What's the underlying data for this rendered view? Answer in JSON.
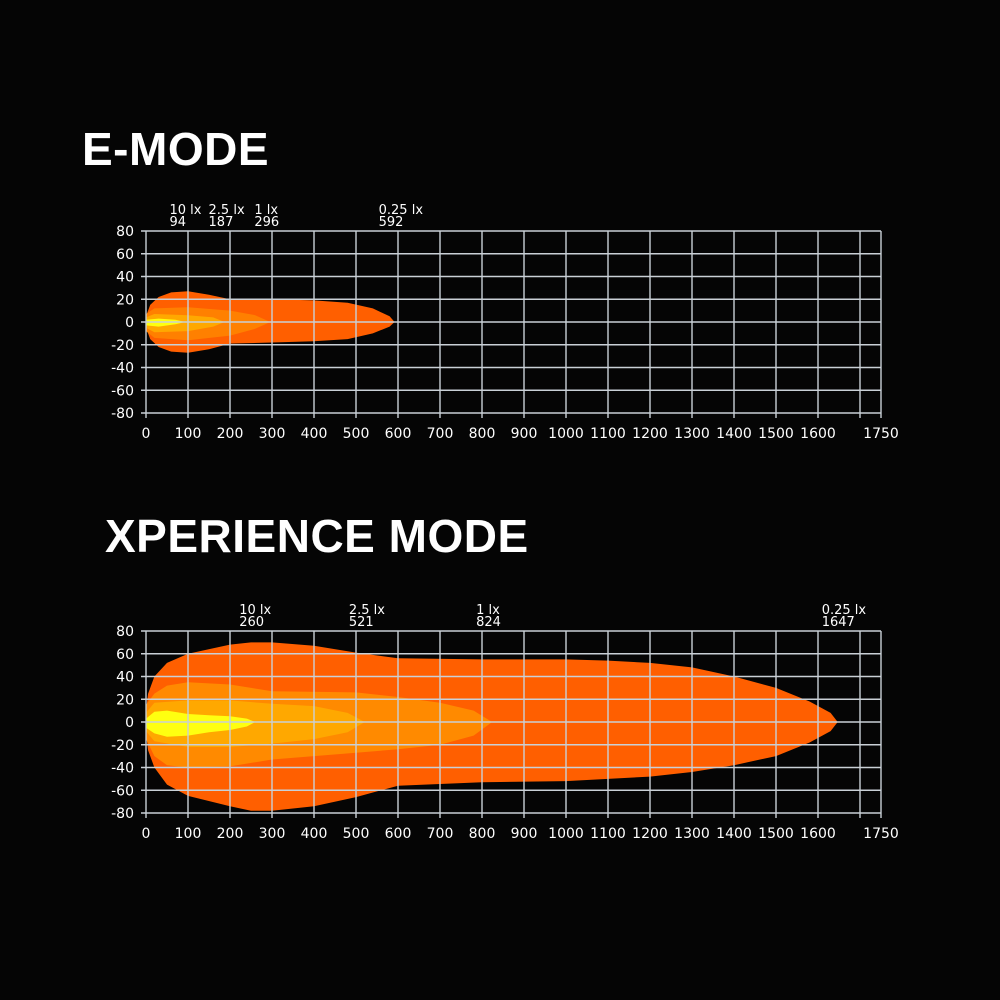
{
  "chart_data": [
    {
      "type": "area",
      "title": "E-MODE",
      "xlim": [
        0,
        1750
      ],
      "ylim": [
        -80,
        80
      ],
      "x_ticks": [
        0,
        100,
        200,
        300,
        400,
        500,
        600,
        700,
        800,
        900,
        1000,
        1100,
        1200,
        1300,
        1400,
        1500,
        1600,
        1750
      ],
      "x_grid": [
        0,
        100,
        200,
        300,
        400,
        500,
        600,
        700,
        800,
        900,
        1000,
        1100,
        1200,
        1300,
        1400,
        1500,
        1600,
        1700,
        1750
      ],
      "y_ticks": [
        80,
        60,
        40,
        20,
        0,
        -20,
        -40,
        -60,
        -80
      ],
      "grid": true,
      "contours": [
        {
          "label": "0.25 lx",
          "reach": 592,
          "color": "#ff5f00",
          "upper": [
            [
              0,
              5
            ],
            [
              10,
              15
            ],
            [
              30,
              22
            ],
            [
              60,
              26
            ],
            [
              100,
              27
            ],
            [
              150,
              24
            ],
            [
              200,
              20
            ],
            [
              300,
              20
            ],
            [
              400,
              19
            ],
            [
              480,
              17
            ],
            [
              540,
              12
            ],
            [
              580,
              5
            ],
            [
              592,
              0
            ]
          ],
          "lower": [
            [
              0,
              -5
            ],
            [
              10,
              -15
            ],
            [
              30,
              -22
            ],
            [
              60,
              -26
            ],
            [
              100,
              -27
            ],
            [
              150,
              -24
            ],
            [
              200,
              -19
            ],
            [
              300,
              -18
            ],
            [
              400,
              -17
            ],
            [
              480,
              -15
            ],
            [
              540,
              -10
            ],
            [
              580,
              -4
            ]
          ]
        },
        {
          "label": "1 lx",
          "reach": 296,
          "color": "#ff8000",
          "upper": [
            [
              0,
              7
            ],
            [
              20,
              12
            ],
            [
              100,
              13
            ],
            [
              200,
              10
            ],
            [
              260,
              6
            ],
            [
              296,
              0
            ]
          ],
          "lower": [
            [
              0,
              -8
            ],
            [
              20,
              -14
            ],
            [
              100,
              -16
            ],
            [
              200,
              -12
            ],
            [
              260,
              -6
            ]
          ]
        },
        {
          "label": "2.5 lx",
          "reach": 187,
          "color": "#ffa800",
          "upper": [
            [
              0,
              4
            ],
            [
              20,
              7
            ],
            [
              100,
              6
            ],
            [
              160,
              4
            ],
            [
              187,
              0
            ]
          ],
          "lower": [
            [
              0,
              -5
            ],
            [
              20,
              -9
            ],
            [
              100,
              -8
            ],
            [
              160,
              -4
            ]
          ]
        },
        {
          "label": "10 lx",
          "reach": 94,
          "color": "#ffff10",
          "upper": [
            [
              0,
              2
            ],
            [
              30,
              3
            ],
            [
              70,
              2
            ],
            [
              94,
              0
            ]
          ],
          "lower": [
            [
              0,
              -3
            ],
            [
              30,
              -4
            ],
            [
              70,
              -2
            ]
          ]
        }
      ]
    },
    {
      "type": "area",
      "title": "XPERIENCE MODE",
      "xlim": [
        0,
        1750
      ],
      "ylim": [
        -80,
        80
      ],
      "x_ticks": [
        0,
        100,
        200,
        300,
        400,
        500,
        600,
        700,
        800,
        900,
        1000,
        1100,
        1200,
        1300,
        1400,
        1500,
        1600,
        1750
      ],
      "x_grid": [
        0,
        100,
        200,
        300,
        400,
        500,
        600,
        700,
        800,
        900,
        1000,
        1100,
        1200,
        1300,
        1400,
        1500,
        1600,
        1700,
        1750
      ],
      "y_ticks": [
        80,
        60,
        40,
        20,
        0,
        -20,
        -40,
        -60,
        -80
      ],
      "grid": true,
      "contours": [
        {
          "label": "0.25 lx",
          "reach": 1647,
          "color": "#ff5f00",
          "upper": [
            [
              0,
              10
            ],
            [
              5,
              25
            ],
            [
              20,
              40
            ],
            [
              50,
              52
            ],
            [
              100,
              60
            ],
            [
              200,
              68
            ],
            [
              250,
              70
            ],
            [
              300,
              70
            ],
            [
              400,
              67
            ],
            [
              500,
              61
            ],
            [
              600,
              56
            ],
            [
              800,
              55
            ],
            [
              1000,
              55
            ],
            [
              1100,
              54
            ],
            [
              1200,
              52
            ],
            [
              1300,
              48
            ],
            [
              1400,
              40
            ],
            [
              1500,
              30
            ],
            [
              1580,
              18
            ],
            [
              1630,
              8
            ],
            [
              1647,
              0
            ]
          ],
          "lower": [
            [
              0,
              -10
            ],
            [
              5,
              -25
            ],
            [
              20,
              -40
            ],
            [
              50,
              -55
            ],
            [
              100,
              -65
            ],
            [
              200,
              -74
            ],
            [
              250,
              -78
            ],
            [
              300,
              -78
            ],
            [
              400,
              -74
            ],
            [
              500,
              -66
            ],
            [
              600,
              -56
            ],
            [
              800,
              -53
            ],
            [
              1000,
              -52
            ],
            [
              1200,
              -48
            ],
            [
              1300,
              -44
            ],
            [
              1400,
              -38
            ],
            [
              1500,
              -30
            ],
            [
              1580,
              -18
            ],
            [
              1630,
              -8
            ]
          ]
        },
        {
          "label": "1 lx",
          "reach": 824,
          "color": "#ff8a00",
          "upper": [
            [
              0,
              15
            ],
            [
              20,
              25
            ],
            [
              50,
              32
            ],
            [
              100,
              35
            ],
            [
              200,
              33
            ],
            [
              300,
              27
            ],
            [
              500,
              26
            ],
            [
              600,
              22
            ],
            [
              700,
              17
            ],
            [
              780,
              10
            ],
            [
              824,
              0
            ]
          ],
          "lower": [
            [
              0,
              -15
            ],
            [
              20,
              -30
            ],
            [
              50,
              -38
            ],
            [
              100,
              -40
            ],
            [
              200,
              -39
            ],
            [
              300,
              -33
            ],
            [
              500,
              -27
            ],
            [
              600,
              -24
            ],
            [
              700,
              -20
            ],
            [
              780,
              -12
            ]
          ]
        },
        {
          "label": "2.5 lx",
          "reach": 521,
          "color": "#ffa800",
          "upper": [
            [
              0,
              8
            ],
            [
              20,
              17
            ],
            [
              100,
              19
            ],
            [
              200,
              19
            ],
            [
              300,
              16
            ],
            [
              400,
              14
            ],
            [
              480,
              8
            ],
            [
              521,
              0
            ]
          ],
          "lower": [
            [
              0,
              -8
            ],
            [
              20,
              -17
            ],
            [
              100,
              -22
            ],
            [
              200,
              -22
            ],
            [
              300,
              -19
            ],
            [
              400,
              -15
            ],
            [
              480,
              -9
            ]
          ]
        },
        {
          "label": "10 lx",
          "reach": 260,
          "color": "#ffff10",
          "upper": [
            [
              0,
              3
            ],
            [
              20,
              9
            ],
            [
              50,
              10
            ],
            [
              100,
              7
            ],
            [
              150,
              6
            ],
            [
              200,
              5
            ],
            [
              240,
              3
            ],
            [
              260,
              0
            ]
          ],
          "lower": [
            [
              0,
              -5
            ],
            [
              20,
              -10
            ],
            [
              50,
              -13
            ],
            [
              100,
              -12
            ],
            [
              150,
              -9
            ],
            [
              200,
              -7
            ],
            [
              240,
              -4
            ]
          ]
        }
      ]
    }
  ]
}
